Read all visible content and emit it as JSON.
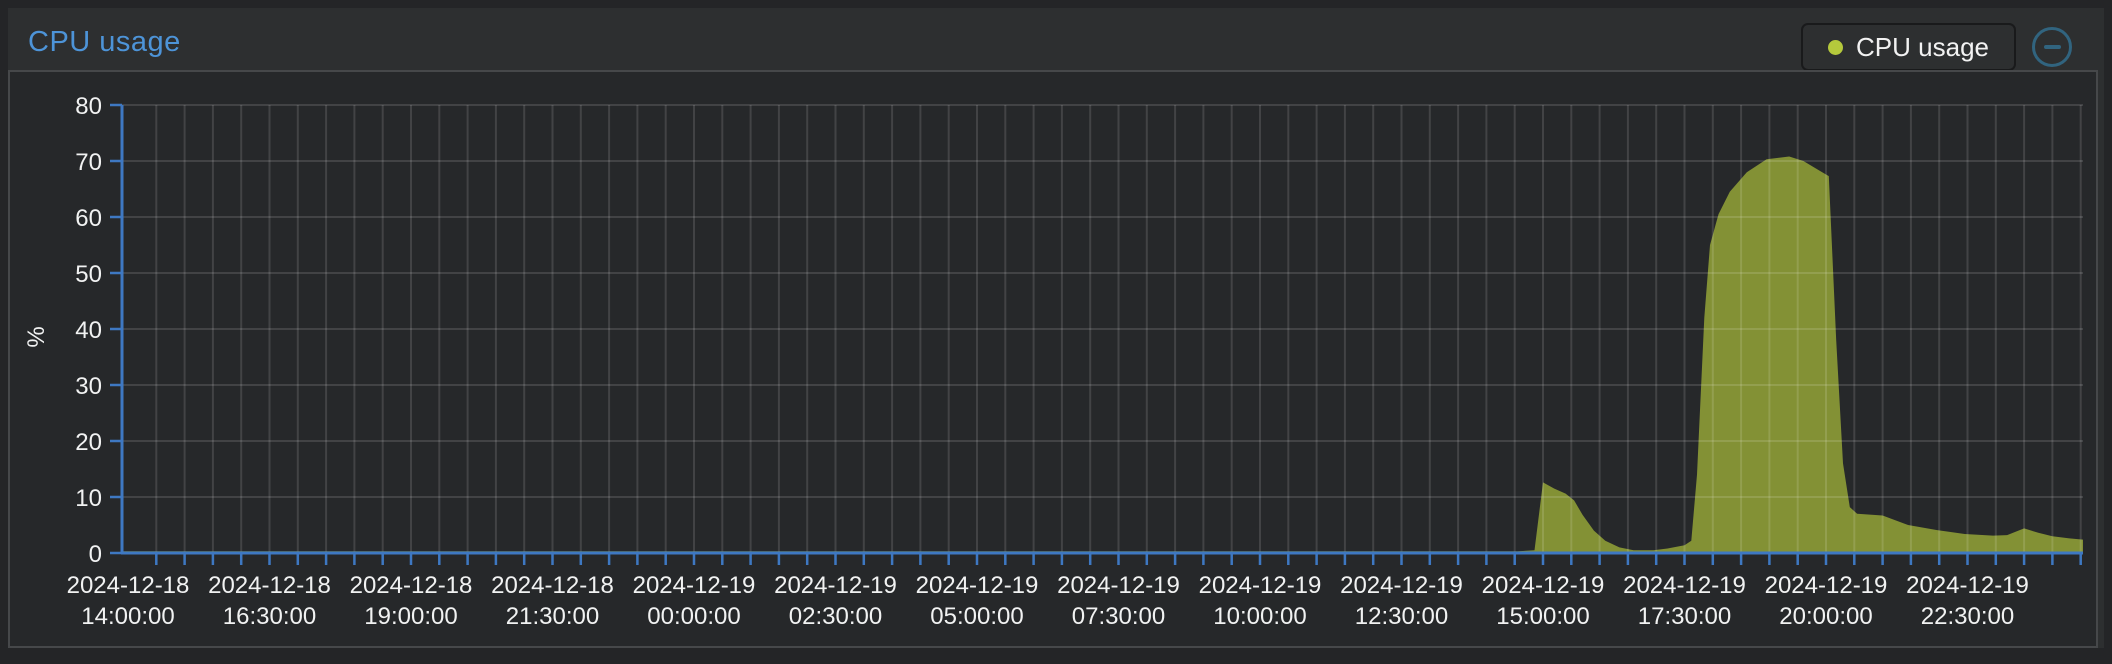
{
  "panel": {
    "title": "CPU usage"
  },
  "legend": {
    "label": "CPU usage",
    "dot_color": "#b5c93c"
  },
  "icons": {
    "collapse": "minus-circle-icon"
  },
  "colors": {
    "page_bg": "#242527",
    "header_bg": "#2d2f30",
    "chart_bg": "#26282a",
    "chart_border": "#46484a",
    "title_blue": "#4d94d8",
    "icon_blue": "#31647f",
    "label_text": "#f1f2f2"
  },
  "chart_data": {
    "type": "area",
    "title": "CPU usage",
    "xlabel": "",
    "ylabel": "%",
    "ylim": [
      0,
      80
    ],
    "yticks": [
      0,
      10,
      20,
      30,
      40,
      50,
      60,
      70,
      80
    ],
    "grid": true,
    "legend_position": "top-right",
    "axis_color": "#3e78c2",
    "grid_color": "rgba(255,255,255,0.13)",
    "x_start": "2024-12-18 14:00:00",
    "x_end": "2024-12-20 00:30:00",
    "x_minor_tick_minutes": 30,
    "x_label_interval_minutes": 150,
    "x_labels": [
      {
        "date": "2024-12-18",
        "time": "14:00:00"
      },
      {
        "date": "2024-12-18",
        "time": "16:30:00"
      },
      {
        "date": "2024-12-18",
        "time": "19:00:00"
      },
      {
        "date": "2024-12-18",
        "time": "21:30:00"
      },
      {
        "date": "2024-12-19",
        "time": "00:00:00"
      },
      {
        "date": "2024-12-19",
        "time": "02:30:00"
      },
      {
        "date": "2024-12-19",
        "time": "05:00:00"
      },
      {
        "date": "2024-12-19",
        "time": "07:30:00"
      },
      {
        "date": "2024-12-19",
        "time": "10:00:00"
      },
      {
        "date": "2024-12-19",
        "time": "12:30:00"
      },
      {
        "date": "2024-12-19",
        "time": "15:00:00"
      },
      {
        "date": "2024-12-19",
        "time": "17:30:00"
      },
      {
        "date": "2024-12-19",
        "time": "20:00:00"
      },
      {
        "date": "2024-12-19",
        "time": "22:30:00"
      }
    ],
    "series": [
      {
        "name": "CPU usage",
        "color": "#b5c93c",
        "fill_opacity": 0.65,
        "points_unit": "hours_since_2024-12-18T14:00 , percent",
        "points": [
          [
            -0.1,
            0.3
          ],
          [
            24.55,
            0.3
          ],
          [
            24.85,
            0.5
          ],
          [
            25.0,
            12.6
          ],
          [
            25.2,
            11.5
          ],
          [
            25.4,
            10.6
          ],
          [
            25.55,
            9.4
          ],
          [
            25.7,
            6.8
          ],
          [
            25.9,
            4.0
          ],
          [
            26.1,
            2.2
          ],
          [
            26.35,
            1.0
          ],
          [
            26.6,
            0.5
          ],
          [
            26.95,
            0.5
          ],
          [
            27.2,
            0.8
          ],
          [
            27.5,
            1.4
          ],
          [
            27.62,
            2.2
          ],
          [
            27.72,
            14.0
          ],
          [
            27.85,
            42.0
          ],
          [
            27.95,
            55.0
          ],
          [
            28.1,
            60.5
          ],
          [
            28.3,
            64.5
          ],
          [
            28.6,
            68.0
          ],
          [
            28.95,
            70.3
          ],
          [
            29.35,
            70.8
          ],
          [
            29.6,
            70.0
          ],
          [
            29.9,
            68.2
          ],
          [
            30.05,
            67.3
          ],
          [
            30.18,
            38.0
          ],
          [
            30.3,
            16.0
          ],
          [
            30.42,
            8.2
          ],
          [
            30.55,
            7.0
          ],
          [
            31.0,
            6.7
          ],
          [
            31.45,
            5.0
          ],
          [
            31.95,
            4.1
          ],
          [
            32.45,
            3.4
          ],
          [
            32.95,
            3.1
          ],
          [
            33.2,
            3.2
          ],
          [
            33.5,
            4.4
          ],
          [
            33.75,
            3.6
          ],
          [
            34.0,
            3.0
          ],
          [
            34.3,
            2.6
          ],
          [
            34.54,
            2.4
          ]
        ]
      }
    ]
  }
}
